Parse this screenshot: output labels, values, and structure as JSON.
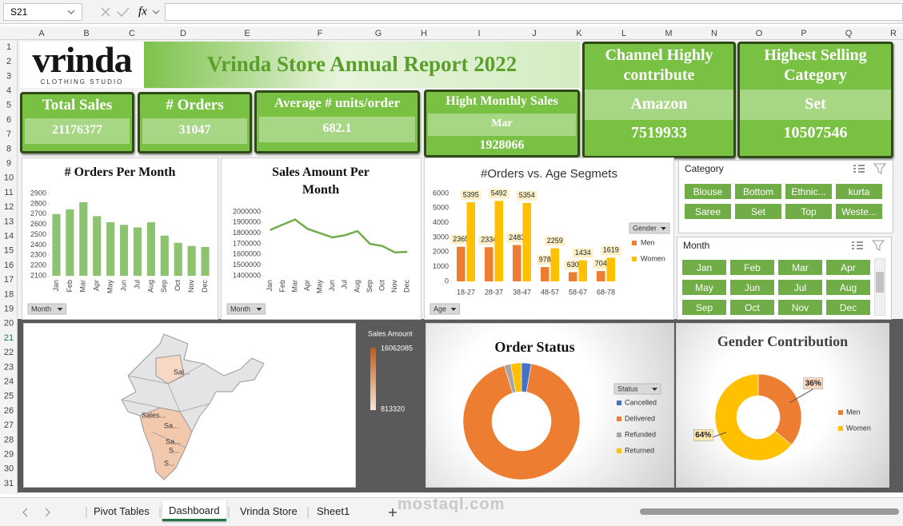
{
  "formula_bar": {
    "name_box": "S21",
    "fx": "fx"
  },
  "columns": [
    "A",
    "B",
    "C",
    "D",
    "E",
    "F",
    "G",
    "H",
    "I",
    "J",
    "K",
    "L",
    "M",
    "N",
    "O",
    "P",
    "Q",
    "R"
  ],
  "rows": [
    1,
    2,
    3,
    4,
    5,
    6,
    7,
    8,
    9,
    10,
    11,
    12,
    13,
    14,
    15,
    16,
    17,
    18,
    19,
    20,
    21,
    22,
    23,
    24,
    25,
    26,
    27,
    28,
    29,
    30,
    31
  ],
  "logo": {
    "name": "vrinda",
    "tagline": "CLOTHING STUDIO"
  },
  "title": "Vrinda Store Annual Report 2022",
  "kpis": [
    {
      "label": "Total Sales",
      "value": 21176377
    },
    {
      "label": "# Orders",
      "value": 31047
    },
    {
      "label": "Average # units/order",
      "value": 682.1
    },
    {
      "label": "Hight Monthly Sales",
      "sublabel": "Mar",
      "value": 1928066
    }
  ],
  "highlights": [
    {
      "label": "Channel Highly contribute",
      "name": "Amazon",
      "value": 7519933
    },
    {
      "label": "Highest Selling Category",
      "name": "Set",
      "value": 10507546
    }
  ],
  "charts": [
    {
      "type": "bar",
      "title": "# Orders Per Month",
      "categories": [
        "Jan",
        "Feb",
        "Mar",
        "Apr",
        "May",
        "Jun",
        "Jul",
        "Aug",
        "Sep",
        "Oct",
        "Nov",
        "Dec"
      ],
      "values": [
        2700,
        2745,
        2815,
        2680,
        2620,
        2595,
        2570,
        2620,
        2490,
        2420,
        2390,
        2380
      ],
      "color": "#8cc270",
      "ylim": [
        2100,
        2900
      ],
      "yticks": [
        2100,
        2200,
        2300,
        2400,
        2500,
        2600,
        2700,
        2800,
        2900
      ],
      "field_button": "Month"
    },
    {
      "type": "line",
      "title": "Sales Amount Per Month",
      "categories": [
        "Jan",
        "Feb",
        "Mar",
        "Apr",
        "May",
        "Jun",
        "Jul",
        "Aug",
        "Sep",
        "Oct",
        "Nov",
        "Dec"
      ],
      "values": [
        1830000,
        1880000,
        1928066,
        1840000,
        1800000,
        1760000,
        1780000,
        1820000,
        1700000,
        1680000,
        1620000,
        1625000
      ],
      "color": "#70ad47",
      "ylim": [
        1400000,
        2000000
      ],
      "yticks": [
        1400000,
        1500000,
        1600000,
        1700000,
        1800000,
        1900000,
        2000000
      ],
      "field_button": "Month"
    },
    {
      "type": "bar",
      "title": "#Orders vs. Age Segmets",
      "categories": [
        "18-27",
        "28-37",
        "38-47",
        "48-57",
        "58-67",
        "68-78"
      ],
      "series": [
        {
          "name": "Men",
          "color": "#ed7d31",
          "values": [
            2365,
            2334,
            2483,
            978,
            630,
            704
          ]
        },
        {
          "name": "Women",
          "color": "#ffc000",
          "values": [
            5395,
            5492,
            5354,
            2259,
            1434,
            1619
          ]
        }
      ],
      "ylim": [
        0,
        6000
      ],
      "yticks": [
        0,
        1000,
        2000,
        3000,
        4000,
        5000,
        6000
      ],
      "legend_title": "Gender",
      "field_button": "Age",
      "data_labels": true
    },
    {
      "type": "donut",
      "title": "Order Status",
      "categories": [
        "Cancelled",
        "Delivered",
        "Refunded",
        "Returned"
      ],
      "values": [
        2.7,
        92.5,
        1.8,
        3.0
      ],
      "colors": [
        "#4472c4",
        "#ed7d31",
        "#a5a5a5",
        "#ffc000"
      ],
      "legend_title": "Status"
    },
    {
      "type": "donut",
      "title": "Gender Contribution",
      "categories": [
        "Men",
        "Women"
      ],
      "values": [
        36,
        64
      ],
      "value_labels": [
        "36%",
        "64%"
      ],
      "colors": [
        "#ed7d31",
        "#ffc000"
      ]
    }
  ],
  "slicers": [
    {
      "title": "Category",
      "items": [
        "Blouse",
        "Bottom",
        "Ethnic...",
        "kurta",
        "Saree",
        "Set",
        "Top",
        "Weste..."
      ]
    },
    {
      "title": "Month",
      "items": [
        "Jan",
        "Feb",
        "Mar",
        "Apr",
        "May",
        "Jun",
        "Jul",
        "Aug",
        "Sep",
        "Oct",
        "Nov",
        "Dec"
      ]
    }
  ],
  "map": {
    "legend_title": "Sales Amount",
    "max": 16062085,
    "min": 813320,
    "labels": [
      "Sal...",
      "Sales...",
      "Sa...",
      "Sa...",
      "S...",
      "S..."
    ]
  },
  "sheet_tabs": [
    "Pivot Tables",
    "Dashboard",
    "Vrinda Store",
    "Sheet1"
  ],
  "active_tab": 1,
  "watermark": "mostaql.com"
}
